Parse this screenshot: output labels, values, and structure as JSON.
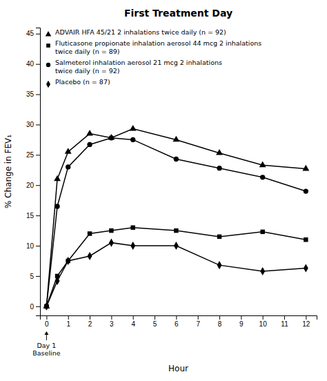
{
  "chart_data": {
    "type": "line",
    "title": "First Treatment Day",
    "xlabel": "Hour",
    "ylabel": "% Change in FEV₁",
    "x": [
      0,
      0.5,
      1,
      2,
      3,
      4,
      6,
      8,
      10,
      12
    ],
    "series": [
      {
        "name": "ADVAIR HFA 45/21 2 inhalations twice daily (n = 92)",
        "marker": "triangle",
        "values": [
          0,
          21.0,
          25.5,
          28.5,
          27.8,
          29.3,
          27.5,
          25.3,
          23.3,
          22.7
        ]
      },
      {
        "name": "Fluticasone propionate inhalation aerosol 44 mcg 2 inhalations\ntwice daily (n = 89)",
        "marker": "square",
        "values": [
          0,
          5.0,
          7.5,
          12.0,
          12.5,
          13.0,
          12.5,
          11.5,
          12.3,
          11.0
        ]
      },
      {
        "name": "Salmeterol inhalation aerosol 21 mcg 2 inhalations\ntwice daily (n = 92)",
        "marker": "circle",
        "values": [
          0,
          16.5,
          23.0,
          26.7,
          27.8,
          27.5,
          24.3,
          22.8,
          21.3,
          19.0
        ]
      },
      {
        "name": "Placebo (n = 87)",
        "marker": "diamond",
        "values": [
          0,
          4.2,
          7.5,
          8.3,
          10.5,
          10.0,
          10.0,
          6.8,
          5.8,
          6.3
        ]
      }
    ],
    "color": "#000000",
    "xlim": [
      -0.3,
      12.5
    ],
    "ylim": [
      -1.5,
      46
    ],
    "xticks": [
      0,
      1,
      2,
      3,
      4,
      5,
      6,
      7,
      8,
      9,
      10,
      11,
      12
    ],
    "yticks": [
      0,
      5,
      10,
      15,
      20,
      25,
      30,
      35,
      40,
      45
    ],
    "grid": false,
    "legend": "upper left",
    "annotations": [
      {
        "text": "Day 1\nBaseline",
        "x": 0
      }
    ]
  }
}
